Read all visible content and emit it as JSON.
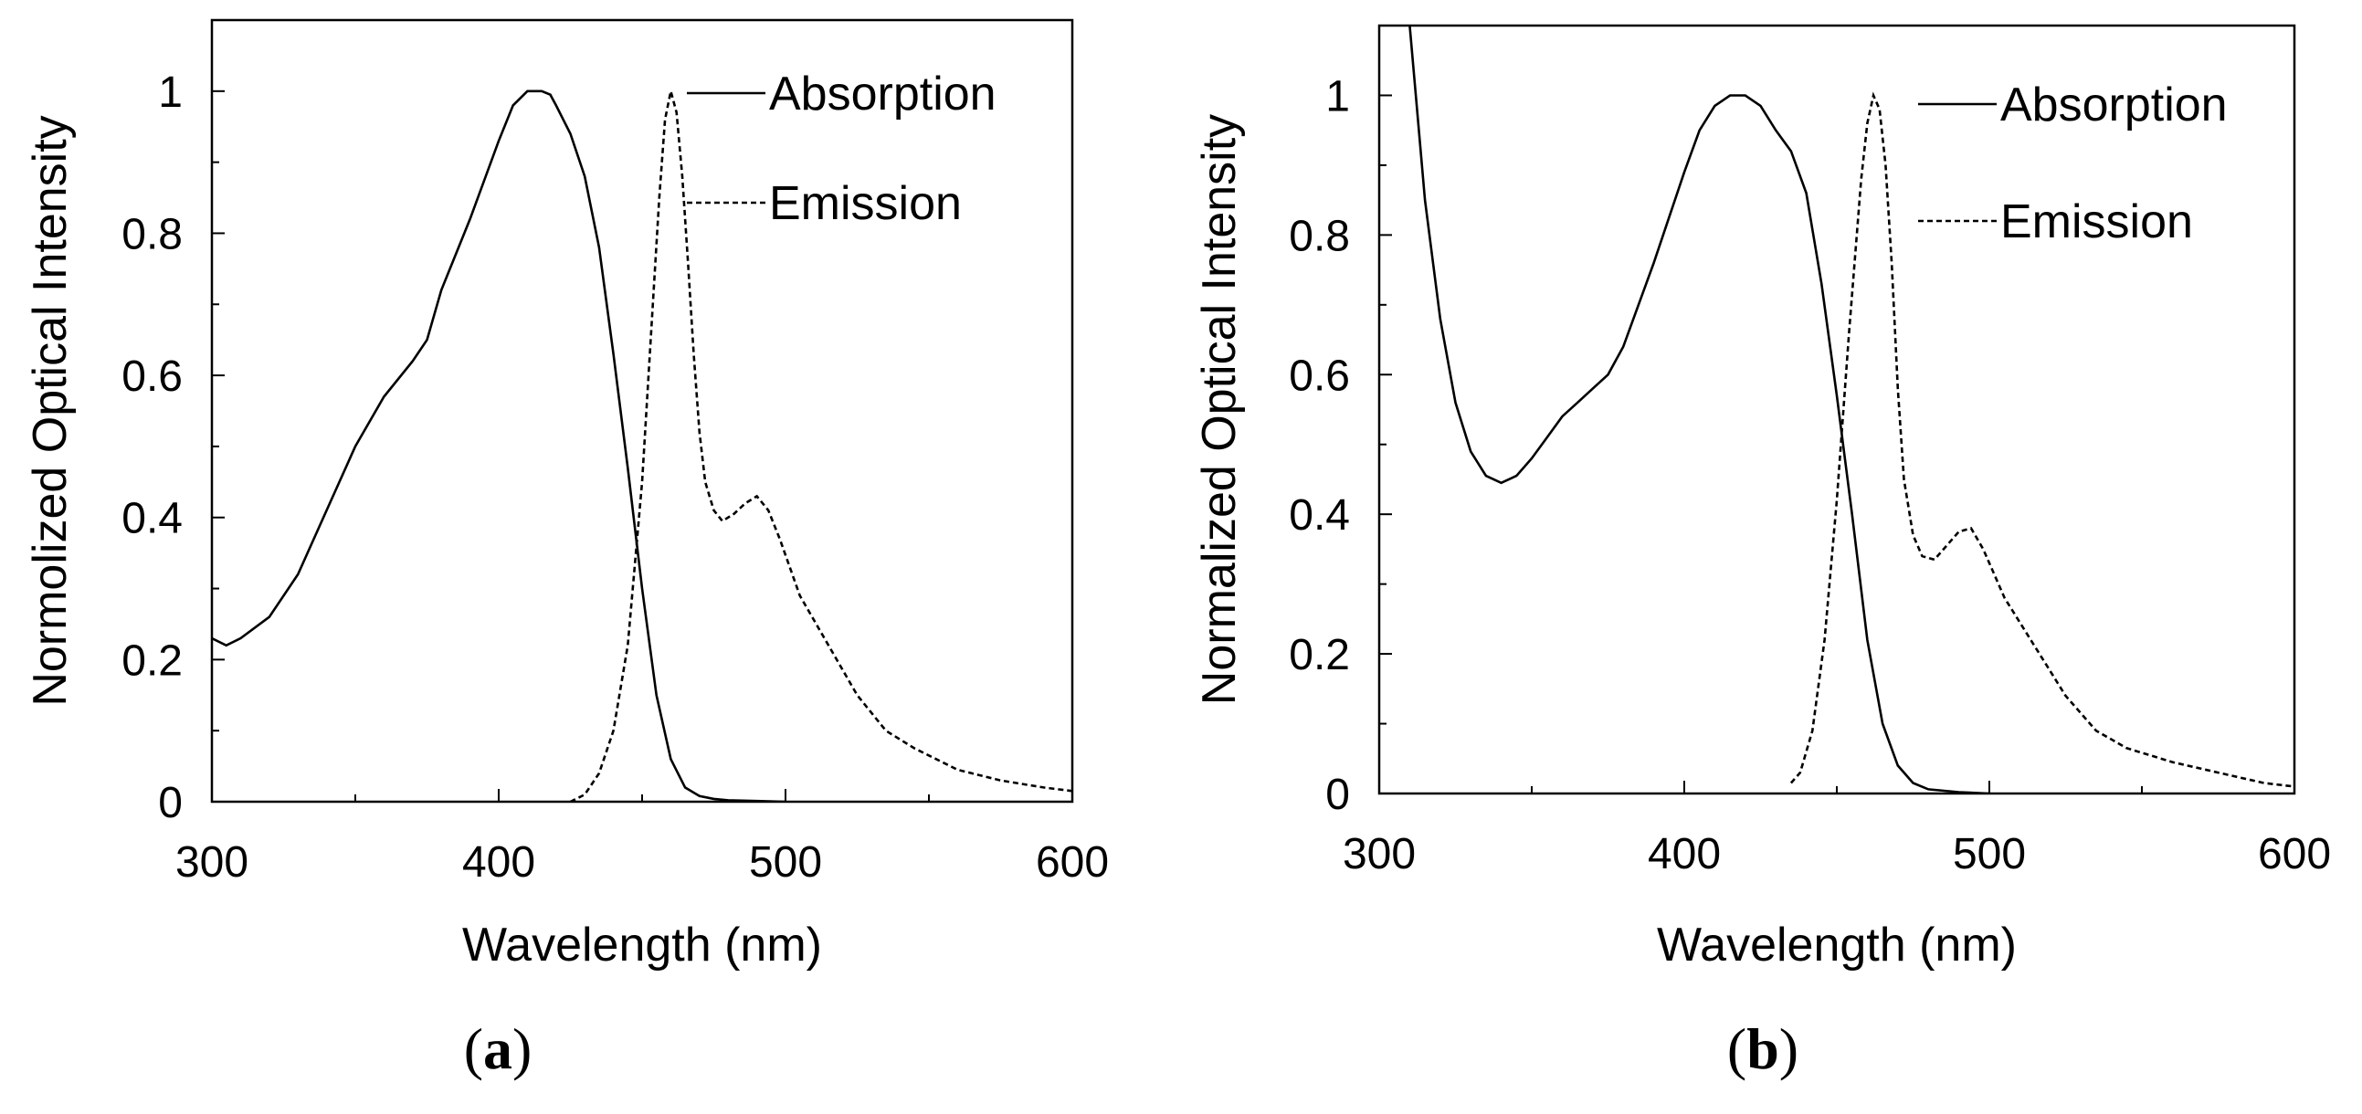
{
  "chart_data": [
    {
      "type": "line",
      "panel_label": "a",
      "xlabel": "Wavelength (nm)",
      "ylabel": "Normolized Optical Intensity",
      "xlim": [
        300,
        600
      ],
      "ylim": [
        0,
        1.1
      ],
      "xticks": [
        300,
        400,
        500,
        600
      ],
      "xtick_labels": [
        "300",
        "400",
        "500",
        "600"
      ],
      "yticks": [
        0,
        0.2,
        0.4,
        0.6,
        0.8,
        1
      ],
      "ytick_labels": [
        "0",
        "0.2",
        "0.4",
        "0.6",
        "0.8",
        "1"
      ],
      "legend_position": "top-right",
      "series": [
        {
          "name": "Absorption",
          "style": "solid",
          "x": [
            300,
            305,
            310,
            320,
            330,
            340,
            350,
            360,
            370,
            375,
            380,
            390,
            400,
            405,
            410,
            415,
            418,
            420,
            425,
            430,
            435,
            440,
            445,
            450,
            455,
            460,
            465,
            470,
            475,
            480,
            490,
            500
          ],
          "y": [
            0.23,
            0.22,
            0.23,
            0.26,
            0.32,
            0.41,
            0.5,
            0.57,
            0.62,
            0.65,
            0.72,
            0.82,
            0.93,
            0.98,
            1.0,
            1.0,
            0.995,
            0.98,
            0.94,
            0.88,
            0.78,
            0.63,
            0.47,
            0.3,
            0.15,
            0.06,
            0.02,
            0.008,
            0.004,
            0.002,
            0.001,
            0.0
          ]
        },
        {
          "name": "Emission",
          "style": "dashed",
          "x": [
            425,
            430,
            435,
            440,
            445,
            450,
            453,
            456,
            458,
            460,
            462,
            464,
            466,
            468,
            470,
            472,
            475,
            478,
            482,
            486,
            490,
            494,
            498,
            505,
            515,
            525,
            535,
            545,
            560,
            575,
            590,
            600
          ],
          "y": [
            0.0,
            0.01,
            0.04,
            0.1,
            0.22,
            0.45,
            0.65,
            0.85,
            0.96,
            1.0,
            0.97,
            0.88,
            0.76,
            0.63,
            0.52,
            0.45,
            0.41,
            0.395,
            0.405,
            0.42,
            0.43,
            0.41,
            0.37,
            0.29,
            0.22,
            0.15,
            0.1,
            0.075,
            0.045,
            0.03,
            0.02,
            0.015
          ]
        }
      ]
    },
    {
      "type": "line",
      "panel_label": "b",
      "xlabel": "Wavelength (nm)",
      "ylabel": "Normalized Optical Intensity",
      "xlim": [
        300,
        600
      ],
      "ylim": [
        0,
        1.1
      ],
      "xticks": [
        300,
        400,
        500,
        600
      ],
      "xtick_labels": [
        "300",
        "400",
        "500",
        "600"
      ],
      "yticks": [
        0,
        0.2,
        0.4,
        0.6,
        0.8,
        1
      ],
      "ytick_labels": [
        "0",
        "0.2",
        "0.4",
        "0.6",
        "0.8",
        "1"
      ],
      "legend_position": "top-right",
      "series": [
        {
          "name": "Absorption",
          "style": "solid",
          "x": [
            310,
            312,
            315,
            320,
            325,
            330,
            335,
            340,
            345,
            350,
            355,
            360,
            365,
            370,
            375,
            380,
            390,
            400,
            405,
            410,
            415,
            420,
            425,
            430,
            435,
            440,
            445,
            450,
            455,
            460,
            465,
            470,
            475,
            480,
            490,
            500
          ],
          "y": [
            1.1,
            1.0,
            0.85,
            0.68,
            0.56,
            0.49,
            0.455,
            0.445,
            0.455,
            0.48,
            0.51,
            0.54,
            0.56,
            0.58,
            0.6,
            0.64,
            0.76,
            0.89,
            0.95,
            0.985,
            1.0,
            1.0,
            0.985,
            0.95,
            0.92,
            0.86,
            0.73,
            0.57,
            0.4,
            0.22,
            0.1,
            0.04,
            0.015,
            0.006,
            0.002,
            0.0
          ]
        },
        {
          "name": "Emission",
          "style": "dashed",
          "x": [
            435,
            438,
            442,
            446,
            450,
            454,
            458,
            460,
            462,
            464,
            466,
            468,
            470,
            472,
            475,
            478,
            482,
            486,
            490,
            494,
            498,
            505,
            515,
            525,
            535,
            545,
            560,
            575,
            590,
            600
          ],
          "y": [
            0.015,
            0.03,
            0.09,
            0.22,
            0.42,
            0.66,
            0.88,
            0.96,
            1.0,
            0.98,
            0.9,
            0.76,
            0.58,
            0.45,
            0.37,
            0.34,
            0.335,
            0.355,
            0.375,
            0.38,
            0.35,
            0.28,
            0.21,
            0.14,
            0.09,
            0.065,
            0.045,
            0.03,
            0.015,
            0.01
          ]
        }
      ]
    }
  ]
}
